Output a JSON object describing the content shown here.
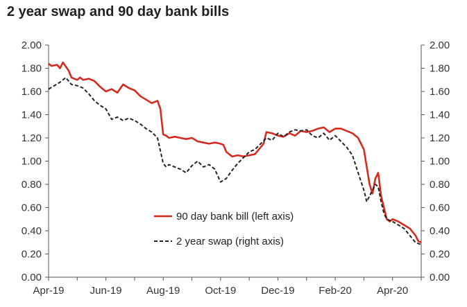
{
  "chart_data": {
    "type": "line",
    "title": "2 year swap and 90 day bank bills",
    "xlabel": "",
    "ylabel": "",
    "ylim": [
      0,
      2
    ],
    "y_ticks": [
      "0.00",
      "0.20",
      "0.40",
      "0.60",
      "0.80",
      "1.00",
      "1.20",
      "1.40",
      "1.60",
      "1.80",
      "2.00"
    ],
    "y2_ticks": [
      "0.00",
      "0.20",
      "0.40",
      "0.60",
      "0.80",
      "1.00",
      "1.20",
      "1.40",
      "1.60",
      "1.80",
      "2.00"
    ],
    "x_ticks": [
      "Apr-19",
      "Jun-19",
      "Aug-19",
      "Oct-19",
      "Dec-19",
      "Feb-20",
      "Apr-20"
    ],
    "x_range": [
      0,
      13
    ],
    "grid": false,
    "legend_position": "bottom-center",
    "series": [
      {
        "name": "90 day bank bill (left axis)",
        "axis": "left",
        "color": "#d52b1e",
        "style": "solid",
        "x": [
          0,
          0.1,
          0.3,
          0.4,
          0.5,
          0.7,
          0.8,
          1.0,
          1.1,
          1.2,
          1.4,
          1.6,
          1.8,
          2.0,
          2.2,
          2.4,
          2.6,
          2.8,
          3.0,
          3.2,
          3.4,
          3.6,
          3.8,
          3.9,
          4.0,
          4.1,
          4.2,
          4.4,
          4.6,
          4.8,
          5.0,
          5.2,
          5.4,
          5.6,
          5.8,
          6.0,
          6.1,
          6.2,
          6.4,
          6.6,
          6.8,
          7.0,
          7.2,
          7.4,
          7.5,
          7.6,
          7.8,
          8.0,
          8.2,
          8.4,
          8.6,
          8.8,
          9.0,
          9.2,
          9.4,
          9.6,
          9.8,
          10.0,
          10.2,
          10.4,
          10.6,
          10.8,
          11.0,
          11.1,
          11.2,
          11.3,
          11.4,
          11.5,
          11.6,
          11.7,
          11.8,
          11.9,
          12.0,
          12.2,
          12.4,
          12.6,
          12.8,
          12.9,
          13.0
        ],
        "values": [
          1.84,
          1.82,
          1.83,
          1.8,
          1.85,
          1.78,
          1.72,
          1.7,
          1.72,
          1.7,
          1.71,
          1.69,
          1.64,
          1.6,
          1.62,
          1.59,
          1.66,
          1.63,
          1.61,
          1.56,
          1.53,
          1.5,
          1.52,
          1.45,
          1.23,
          1.22,
          1.2,
          1.21,
          1.2,
          1.19,
          1.2,
          1.17,
          1.16,
          1.15,
          1.16,
          1.15,
          1.14,
          1.08,
          1.04,
          1.05,
          1.04,
          1.05,
          1.06,
          1.12,
          1.15,
          1.25,
          1.24,
          1.22,
          1.21,
          1.24,
          1.22,
          1.26,
          1.25,
          1.26,
          1.28,
          1.29,
          1.25,
          1.28,
          1.28,
          1.26,
          1.24,
          1.2,
          1.1,
          0.95,
          0.8,
          0.72,
          0.85,
          0.9,
          0.7,
          0.6,
          0.5,
          0.48,
          0.5,
          0.48,
          0.45,
          0.42,
          0.36,
          0.31,
          0.3
        ]
      },
      {
        "name": "2 year swap (right axis)",
        "axis": "right",
        "color": "#222222",
        "style": "dashed",
        "x": [
          0,
          0.2,
          0.4,
          0.6,
          0.8,
          1.0,
          1.2,
          1.4,
          1.6,
          1.8,
          2.0,
          2.2,
          2.4,
          2.6,
          2.8,
          3.0,
          3.2,
          3.4,
          3.6,
          3.8,
          4.0,
          4.1,
          4.2,
          4.4,
          4.6,
          4.8,
          5.0,
          5.2,
          5.4,
          5.6,
          5.8,
          6.0,
          6.2,
          6.4,
          6.6,
          6.8,
          7.0,
          7.2,
          7.4,
          7.6,
          7.8,
          8.0,
          8.2,
          8.4,
          8.6,
          8.8,
          9.0,
          9.2,
          9.4,
          9.6,
          9.8,
          10.0,
          10.2,
          10.4,
          10.6,
          10.8,
          11.0,
          11.1,
          11.2,
          11.3,
          11.4,
          11.5,
          11.6,
          11.7,
          11.8,
          12.0,
          12.2,
          12.4,
          12.6,
          12.8,
          13.0
        ],
        "values": [
          1.62,
          1.65,
          1.68,
          1.72,
          1.66,
          1.65,
          1.63,
          1.58,
          1.52,
          1.48,
          1.45,
          1.36,
          1.38,
          1.35,
          1.37,
          1.35,
          1.32,
          1.28,
          1.25,
          1.2,
          0.98,
          0.95,
          0.97,
          0.95,
          0.93,
          0.9,
          0.96,
          1.0,
          0.95,
          0.97,
          0.93,
          0.82,
          0.85,
          0.92,
          0.98,
          1.03,
          1.08,
          1.1,
          1.15,
          1.2,
          1.18,
          1.24,
          1.21,
          1.25,
          1.27,
          1.26,
          1.27,
          1.22,
          1.2,
          1.24,
          1.18,
          1.22,
          1.17,
          1.12,
          1.05,
          0.9,
          0.75,
          0.65,
          0.7,
          0.75,
          0.8,
          0.78,
          0.65,
          0.55,
          0.5,
          0.48,
          0.45,
          0.42,
          0.36,
          0.3,
          0.28
        ]
      }
    ]
  }
}
